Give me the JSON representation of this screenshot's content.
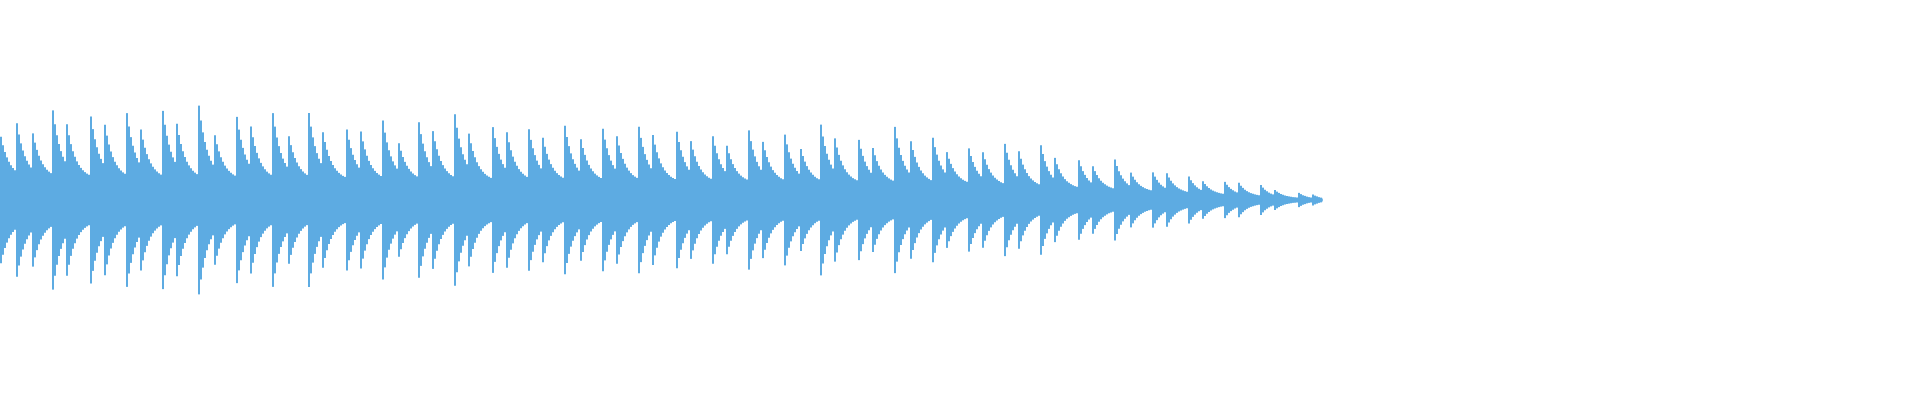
{
  "waveform": {
    "color": "#5DABE2",
    "background": "#FFFFFF"
  }
}
